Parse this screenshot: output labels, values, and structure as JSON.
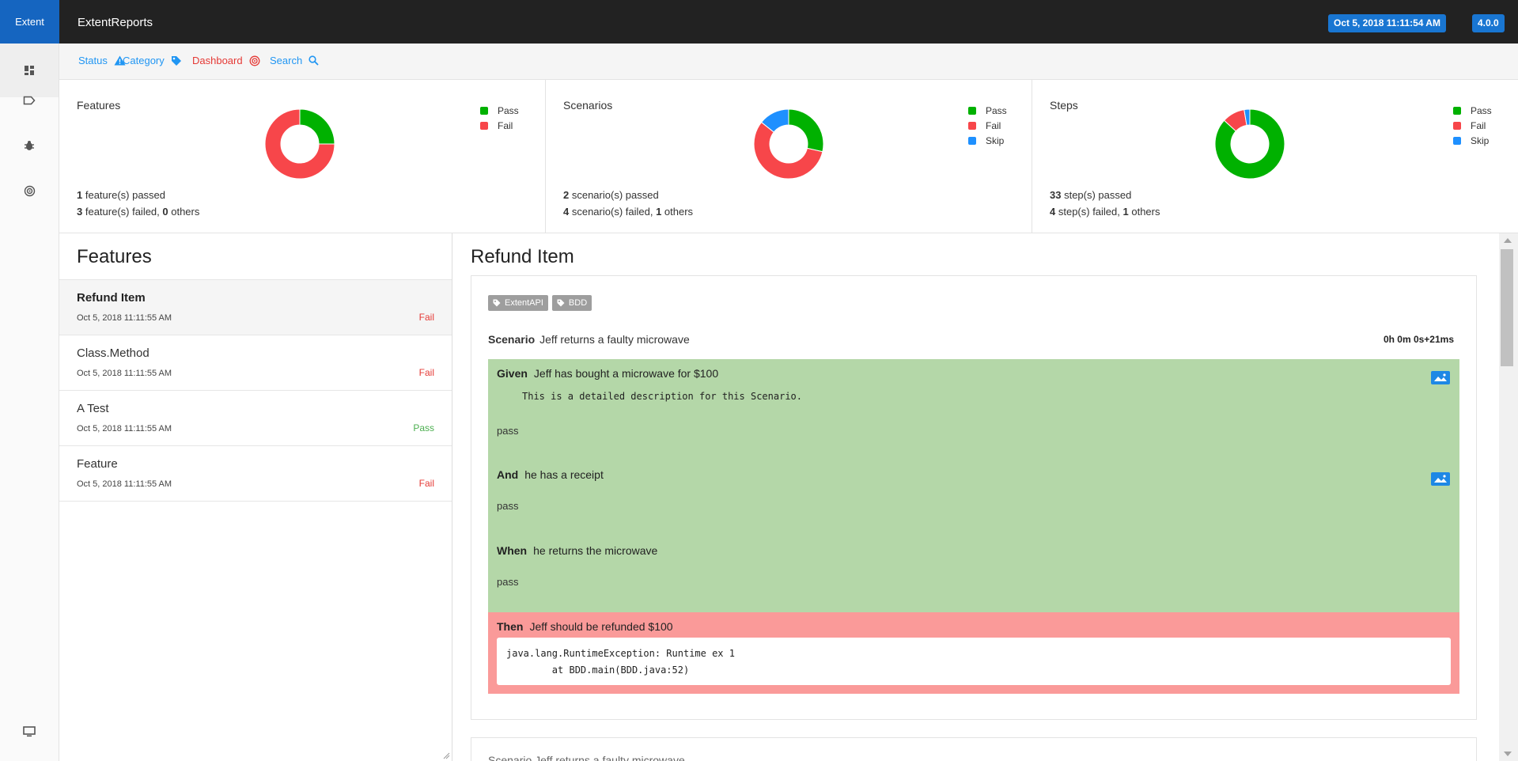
{
  "header": {
    "brand": "Extent",
    "title": "ExtentReports",
    "date_badge": "Oct 5, 2018 11:11:54 AM",
    "version_badge": "4.0.0"
  },
  "sidenav": {
    "items": [
      {
        "icon": "dashboard-icon",
        "active": true
      },
      {
        "icon": "tag-icon"
      },
      {
        "icon": "bug-icon"
      },
      {
        "icon": "radar-icon"
      }
    ],
    "bottom_icon": "monitor-icon"
  },
  "subheader": {
    "status": "Status",
    "category": "Category",
    "dashboard": "Dashboard",
    "search": "Search"
  },
  "colors": {
    "pass": "#00b100",
    "fail": "#f7464a",
    "skip": "#1e90ff"
  },
  "legend_labels": {
    "pass": "Pass",
    "fail": "Fail",
    "skip": "Skip"
  },
  "dashboard": {
    "features": {
      "title": "Features",
      "passed_num": "1",
      "passed_text": " feature(s) passed",
      "failed_num": "3",
      "failed_text": " feature(s) failed, ",
      "others_num": "0",
      "others_text": " others"
    },
    "scenarios": {
      "title": "Scenarios",
      "passed_num": "2",
      "passed_text": " scenario(s) passed",
      "failed_num": "4",
      "failed_text": " scenario(s) failed, ",
      "others_num": "1",
      "others_text": " others"
    },
    "steps": {
      "title": "Steps",
      "passed_num": "33",
      "passed_text": " step(s) passed",
      "failed_num": "4",
      "failed_text": " step(s) failed, ",
      "others_num": "1",
      "others_text": " others"
    }
  },
  "chart_data": [
    {
      "type": "pie",
      "categories": [
        "Pass",
        "Fail"
      ],
      "values": [
        1,
        3
      ]
    },
    {
      "type": "pie",
      "categories": [
        "Pass",
        "Fail",
        "Skip"
      ],
      "values": [
        2,
        4,
        1
      ]
    },
    {
      "type": "pie",
      "categories": [
        "Pass",
        "Fail",
        "Skip"
      ],
      "values": [
        33,
        4,
        1
      ]
    }
  ],
  "features_list": {
    "title": "Features",
    "items": [
      {
        "name": "Refund Item",
        "time": "Oct 5, 2018 11:11:55 AM",
        "status": "Fail"
      },
      {
        "name": "Class.Method",
        "time": "Oct 5, 2018 11:11:55 AM",
        "status": "Fail"
      },
      {
        "name": "A Test",
        "time": "Oct 5, 2018 11:11:55 AM",
        "status": "Pass"
      },
      {
        "name": "Feature",
        "time": "Oct 5, 2018 11:11:55 AM",
        "status": "Fail"
      }
    ]
  },
  "detail": {
    "title": "Refund Item",
    "tags": [
      "ExtentAPI",
      "BDD"
    ],
    "scenario_keyword": "Scenario",
    "scenario_name": "Jeff returns a faulty microwave",
    "duration": "0h 0m 0s+21ms",
    "steps": [
      {
        "keyword": "Given",
        "text": "Jeff has bought a microwave for $100",
        "desc": "This is a detailed description for this Scenario.",
        "log": "pass"
      },
      {
        "keyword": "And",
        "text": "he has a receipt",
        "log": "pass"
      },
      {
        "keyword": "When",
        "text": "he returns the microwave",
        "log": "pass"
      },
      {
        "keyword": "Then",
        "text": "Jeff should be refunded $100",
        "exception": "java.lang.RuntimeException: Runtime ex 1\n        at BDD.main(BDD.java:52)"
      }
    ],
    "next_scenario": "Scenario  Jeff returns a faulty microwave"
  }
}
